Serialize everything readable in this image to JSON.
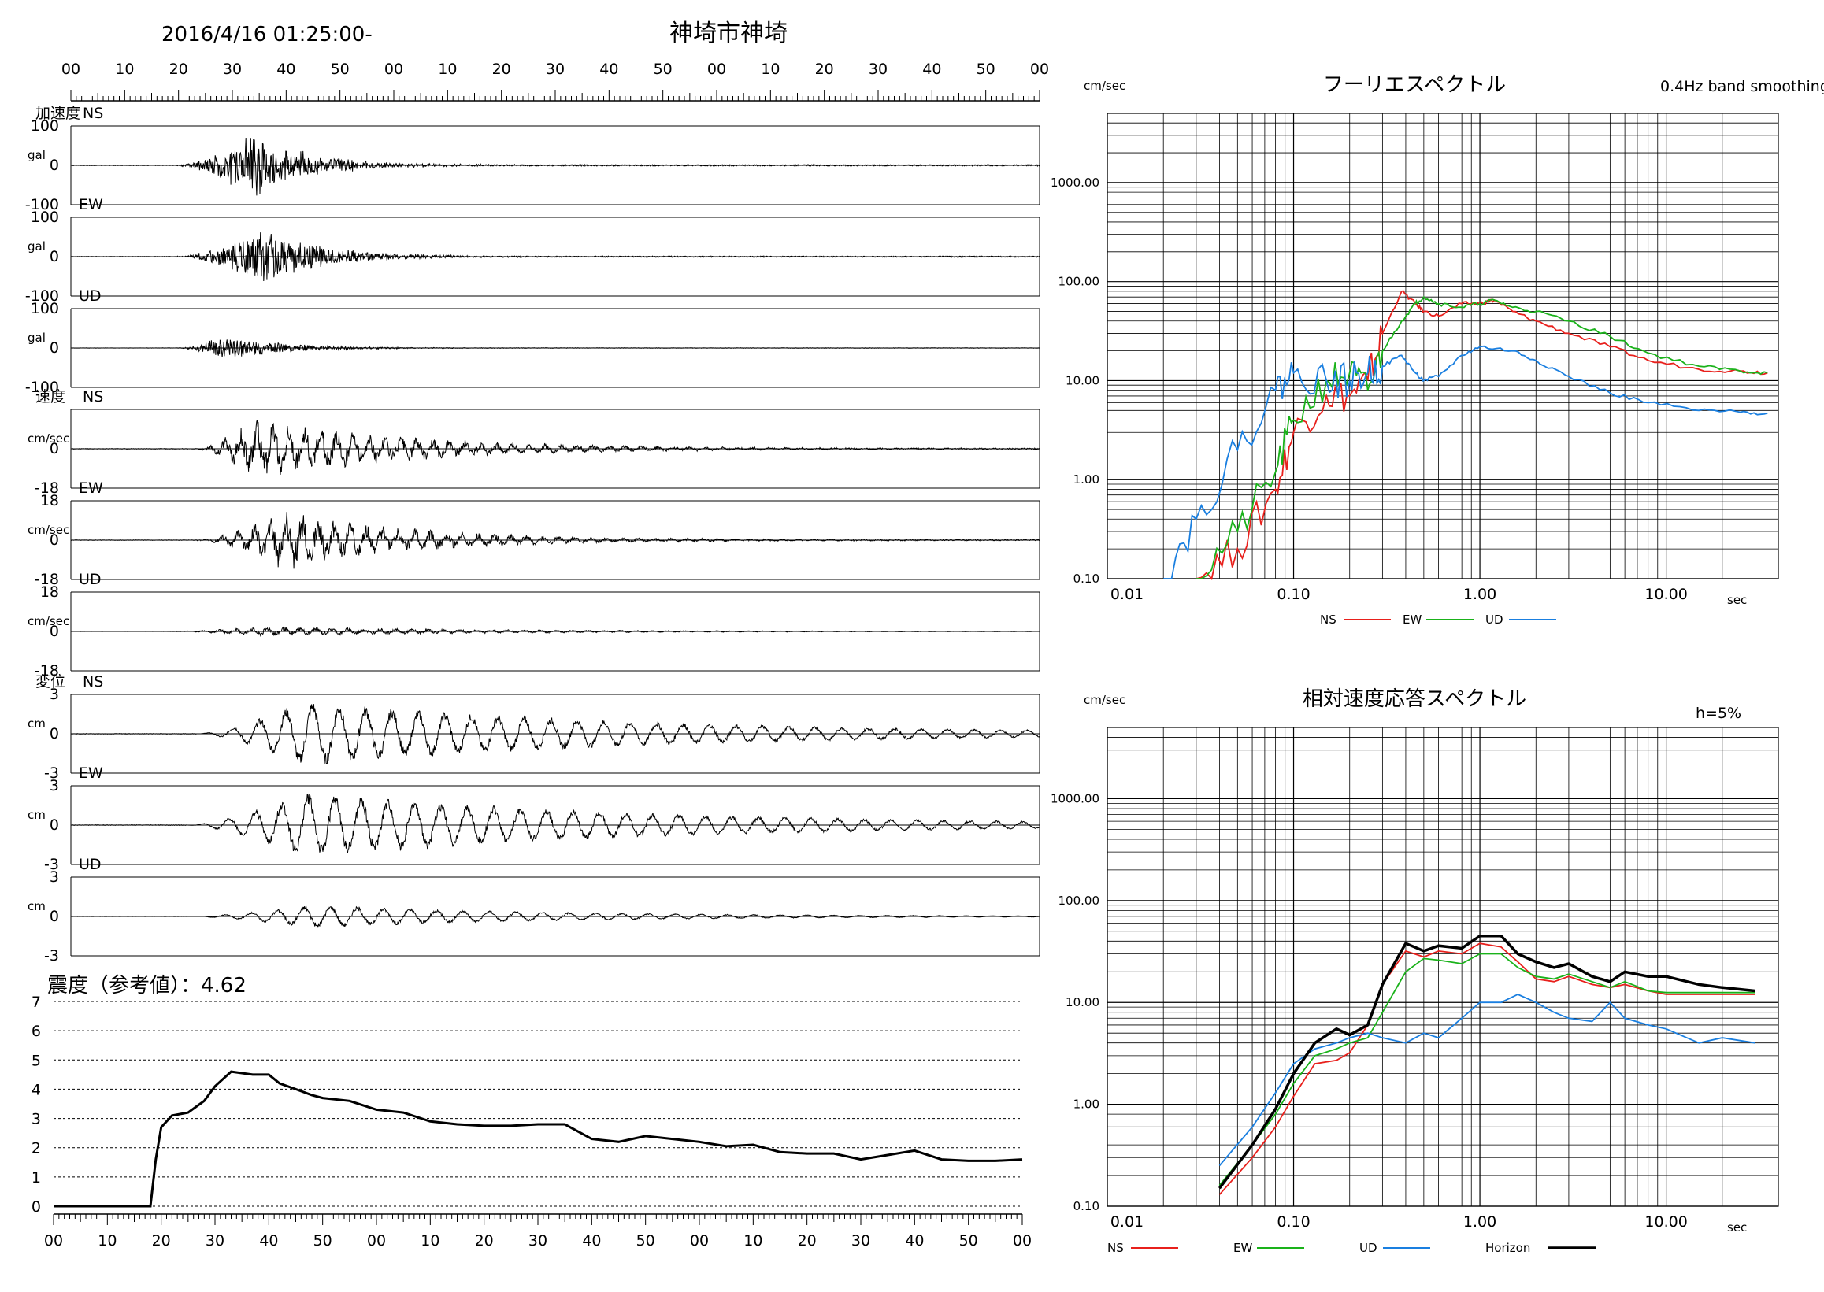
{
  "header": {
    "datetime": "2016/4/16 01:25:00-",
    "station": "神埼市神埼"
  },
  "time_ticks": [
    "00",
    "10",
    "20",
    "30",
    "40",
    "50",
    "00",
    "10",
    "20",
    "30",
    "40",
    "50",
    "00",
    "10",
    "20",
    "30",
    "40",
    "50",
    "00"
  ],
  "waveforms": [
    {
      "group_label": "加速度",
      "comp": "NS",
      "unit": "gal",
      "top": "100",
      "zero": "0",
      "bottom": "-100",
      "amp": 0.95,
      "onset": 0.11,
      "peak_at": 0.19,
      "decay": 0.055,
      "mode": "acc",
      "seed": 1
    },
    {
      "group_label": "",
      "comp": "EW",
      "unit": "gal",
      "top": "100",
      "zero": "0",
      "bottom": "-100",
      "amp": 0.8,
      "onset": 0.11,
      "peak_at": 0.2,
      "decay": 0.06,
      "mode": "acc",
      "seed": 2
    },
    {
      "group_label": "",
      "comp": "UD",
      "unit": "gal",
      "top": "100",
      "zero": "0",
      "bottom": "-100",
      "amp": 0.35,
      "onset": 0.11,
      "peak_at": 0.16,
      "decay": 0.06,
      "mode": "acc",
      "seed": 3
    },
    {
      "group_label": "速度",
      "comp": "NS",
      "unit": "cm/sec",
      "top": "",
      "zero": "0",
      "bottom": "-18",
      "amp": 0.8,
      "onset": 0.13,
      "peak_at": 0.19,
      "decay": 0.16,
      "mode": "vel",
      "seed": 4
    },
    {
      "group_label": "",
      "comp": "EW",
      "unit": "cm/sec",
      "top": "18",
      "zero": "0",
      "bottom": "-18",
      "amp": 0.75,
      "onset": 0.13,
      "peak_at": 0.22,
      "decay": 0.14,
      "mode": "vel",
      "seed": 5
    },
    {
      "group_label": "",
      "comp": "UD",
      "unit": "cm/sec",
      "top": "18",
      "zero": "0",
      "bottom": "-18",
      "amp": 0.12,
      "onset": 0.1,
      "peak_at": 0.2,
      "decay": 0.25,
      "mode": "vel",
      "seed": 6
    },
    {
      "group_label": "変位",
      "comp": "NS",
      "unit": "cm",
      "top": "3",
      "zero": "0",
      "bottom": "-3",
      "amp": 0.85,
      "onset": 0.13,
      "peak_at": 0.24,
      "decay": 0.35,
      "mode": "disp",
      "seed": 7
    },
    {
      "group_label": "",
      "comp": "EW",
      "unit": "cm",
      "top": "3",
      "zero": "0",
      "bottom": "-3",
      "amp": 0.85,
      "onset": 0.12,
      "peak_at": 0.24,
      "decay": 0.35,
      "mode": "disp",
      "seed": 8
    },
    {
      "group_label": "",
      "comp": "UD",
      "unit": "cm",
      "top": "3",
      "zero": "0",
      "bottom": "-3",
      "amp": 0.3,
      "onset": 0.12,
      "peak_at": 0.25,
      "decay": 0.25,
      "mode": "disp",
      "seed": 9
    }
  ],
  "intensity": {
    "label": "震度（参考値）：4.62",
    "yticks": [
      "0",
      "1",
      "2",
      "3",
      "4",
      "5",
      "6",
      "7"
    ],
    "xticks": [
      "00",
      "10",
      "20",
      "30",
      "40",
      "50",
      "00",
      "10",
      "20",
      "30",
      "40",
      "50",
      "00",
      "10",
      "20",
      "30",
      "40",
      "50",
      "00"
    ]
  },
  "colors": {
    "NS": "#e8201c",
    "EW": "#1ab21a",
    "UD": "#1a7fe0",
    "Horizon": "#000000"
  },
  "chart_data": [
    {
      "type": "line",
      "title": "フーリエスペクトル",
      "subtitle": "0.4Hz band smoothing",
      "ylabel": "cm/sec",
      "xlabel": "sec",
      "xscale": "log",
      "yscale": "log",
      "xlim": [
        0.01,
        40
      ],
      "ylim": [
        0.1,
        5000
      ],
      "xtick_labels": [
        "0.01",
        "0.10",
        "1.00",
        "10.00"
      ],
      "ytick_labels": [
        "0.10",
        "1.00",
        "10.00",
        "100.00",
        "1000.00"
      ],
      "legend": [
        "NS",
        "EW",
        "UD"
      ],
      "legend_position": "bottom",
      "series": [
        {
          "name": "NS",
          "x": [
            0.03,
            0.05,
            0.08,
            0.1,
            0.15,
            0.2,
            0.25,
            0.3,
            0.38,
            0.45,
            0.5,
            0.6,
            0.8,
            1.0,
            1.2,
            1.5,
            2,
            3,
            5,
            8,
            15,
            25,
            35
          ],
          "y": [
            0.1,
            0.2,
            0.8,
            3,
            7,
            7,
            10,
            30,
            80,
            60,
            50,
            45,
            60,
            60,
            65,
            50,
            40,
            30,
            22,
            16,
            13,
            12.5,
            12
          ]
        },
        {
          "name": "EW",
          "x": [
            0.03,
            0.05,
            0.08,
            0.1,
            0.15,
            0.2,
            0.25,
            0.3,
            0.38,
            0.45,
            0.5,
            0.6,
            0.8,
            1.0,
            1.2,
            1.5,
            2,
            3,
            5,
            8,
            15,
            25,
            35
          ],
          "y": [
            0.1,
            0.3,
            1.2,
            4,
            10,
            12,
            8,
            20,
            40,
            60,
            70,
            60,
            55,
            60,
            65,
            55,
            50,
            40,
            28,
            19,
            14,
            12.5,
            12
          ]
        },
        {
          "name": "UD",
          "x": [
            0.02,
            0.03,
            0.05,
            0.08,
            0.1,
            0.15,
            0.2,
            0.25,
            0.3,
            0.38,
            0.45,
            0.5,
            0.6,
            0.8,
            1.0,
            1.5,
            2,
            3,
            5,
            8,
            15,
            25,
            35
          ],
          "y": [
            0.1,
            0.4,
            2,
            8,
            12,
            10,
            10,
            12,
            14,
            18,
            12,
            10,
            11,
            18,
            22,
            20,
            16,
            11,
            7.5,
            6,
            5,
            4.8,
            4.7
          ]
        }
      ]
    },
    {
      "type": "line",
      "title": "相対速度応答スペクトル",
      "annotation": "h=5%",
      "ylabel": "cm/sec",
      "xlabel": "sec",
      "xscale": "log",
      "yscale": "log",
      "xlim": [
        0.01,
        40
      ],
      "ylim": [
        0.1,
        5000
      ],
      "xtick_labels": [
        "0.01",
        "0.10",
        "1.00",
        "10.00"
      ],
      "ytick_labels": [
        "0.10",
        "1.00",
        "10.00",
        "100.00",
        "1000.00"
      ],
      "legend": [
        "NS",
        "EW",
        "UD",
        "Horizon"
      ],
      "legend_position": "bottom",
      "series": [
        {
          "name": "NS",
          "x": [
            0.04,
            0.06,
            0.08,
            0.1,
            0.13,
            0.17,
            0.2,
            0.25,
            0.3,
            0.4,
            0.5,
            0.6,
            0.8,
            1.0,
            1.3,
            1.6,
            2,
            2.5,
            3,
            4,
            5,
            6,
            8,
            10,
            15,
            20,
            30
          ],
          "y": [
            0.13,
            0.3,
            0.6,
            1.2,
            2.5,
            2.7,
            3.2,
            6,
            15,
            32,
            28,
            32,
            30,
            38,
            35,
            25,
            17,
            16,
            18,
            15,
            14,
            15,
            13,
            12,
            12,
            12,
            12
          ]
        },
        {
          "name": "EW",
          "x": [
            0.04,
            0.06,
            0.08,
            0.1,
            0.13,
            0.17,
            0.2,
            0.25,
            0.3,
            0.4,
            0.5,
            0.6,
            0.8,
            1.0,
            1.3,
            1.6,
            2,
            2.5,
            3,
            4,
            5,
            6,
            8,
            10,
            15,
            20,
            30
          ],
          "y": [
            0.16,
            0.4,
            0.8,
            1.6,
            3,
            3.5,
            4,
            4.5,
            8,
            20,
            27,
            26,
            24,
            30,
            30,
            22,
            18,
            17,
            19,
            16,
            14,
            16,
            13,
            12.5,
            12.5,
            12.5,
            12.5
          ]
        },
        {
          "name": "UD",
          "x": [
            0.04,
            0.06,
            0.08,
            0.1,
            0.13,
            0.17,
            0.2,
            0.25,
            0.3,
            0.4,
            0.5,
            0.6,
            0.8,
            1.0,
            1.3,
            1.6,
            2,
            2.5,
            3,
            4,
            5,
            6,
            8,
            10,
            15,
            20,
            30
          ],
          "y": [
            0.25,
            0.6,
            1.3,
            2.5,
            3.5,
            4,
            4.5,
            5,
            4.5,
            4,
            5,
            4.5,
            7,
            10,
            10,
            12,
            10,
            8,
            7,
            6.5,
            10,
            7,
            6,
            5.5,
            4,
            4.5,
            4
          ]
        },
        {
          "name": "Horizon",
          "x": [
            0.04,
            0.06,
            0.08,
            0.1,
            0.13,
            0.17,
            0.2,
            0.25,
            0.3,
            0.4,
            0.5,
            0.6,
            0.8,
            1.0,
            1.3,
            1.6,
            2,
            2.5,
            3,
            4,
            5,
            6,
            8,
            10,
            15,
            20,
            30
          ],
          "y": [
            0.15,
            0.4,
            0.9,
            2,
            4,
            5.5,
            4.8,
            6,
            15,
            38,
            32,
            36,
            34,
            45,
            45,
            30,
            25,
            22,
            24,
            18,
            16,
            20,
            18,
            18,
            15,
            14,
            13
          ]
        }
      ]
    },
    {
      "type": "line",
      "title": "震度（参考値）：4.62",
      "xlim": [
        0,
        180
      ],
      "ylim": [
        0,
        7
      ],
      "series": [
        {
          "name": "intensity",
          "x": [
            0,
            10,
            18,
            19,
            20,
            22,
            25,
            28,
            30,
            33,
            35,
            37,
            40,
            42,
            45,
            48,
            50,
            55,
            60,
            65,
            70,
            75,
            80,
            85,
            90,
            95,
            100,
            105,
            110,
            115,
            120,
            125,
            130,
            135,
            140,
            145,
            150,
            155,
            160,
            165,
            170,
            175,
            180
          ],
          "y": [
            0,
            0,
            0,
            1.6,
            2.7,
            3.1,
            3.2,
            3.6,
            4.1,
            4.6,
            4.55,
            4.5,
            4.5,
            4.2,
            4.0,
            3.8,
            3.7,
            3.6,
            3.3,
            3.2,
            2.9,
            2.8,
            2.75,
            2.75,
            2.8,
            2.8,
            2.3,
            2.2,
            2.4,
            2.3,
            2.2,
            2.05,
            2.1,
            1.85,
            1.8,
            1.8,
            1.6,
            1.75,
            1.9,
            1.6,
            1.55,
            1.55,
            1.6
          ]
        }
      ]
    }
  ]
}
